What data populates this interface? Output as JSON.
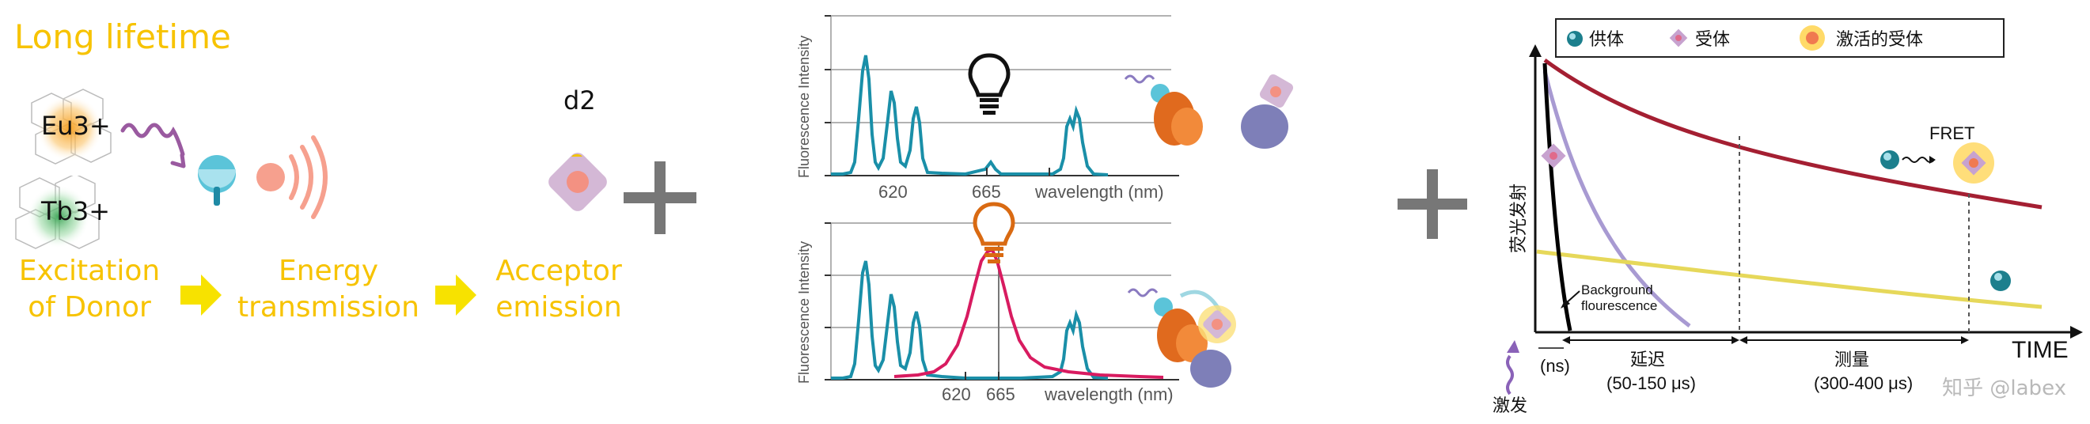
{
  "left_panel": {
    "title": "Long lifetime",
    "donor1": "Eu3+",
    "donor2": "Tb3+",
    "steps": [
      "Excitation of Donor",
      "Energy transmission",
      "Acceptor emission"
    ],
    "step_lines": [
      [
        "Excitation",
        "of Donor"
      ],
      [
        "Energy",
        "transmission"
      ],
      [
        "Acceptor",
        "emission"
      ]
    ],
    "acceptor_label": "d2",
    "colors": {
      "step_text": "#f7c300",
      "arrow": "#f7e200"
    }
  },
  "plus_signs": [
    "+",
    "+"
  ],
  "spectra": [
    {
      "ylabel": "Fluorescence Intensity",
      "xticks": [
        "620",
        "665"
      ],
      "xlabel": "wavelength (nm)",
      "icon": "lightbulb-off-icon",
      "series_color": "#1a8fa8"
    },
    {
      "ylabel": "Fluorescence Intensity",
      "xticks": [
        "620",
        "665"
      ],
      "xlabel": "wavelength (nm)",
      "icon": "lightbulb-on-icon",
      "series_color": "#1a8fa8",
      "emission_color": "#d81b60"
    }
  ],
  "time_chart": {
    "legend": [
      "供体",
      "受体",
      "激活的受体"
    ],
    "ylabel": "荧光发射",
    "xlabel": "TIME",
    "fret_label": "FRET",
    "background_label": [
      "Background",
      "flourescence"
    ],
    "intervals": [
      {
        "label": "延迟",
        "range": "(50-150 μs)"
      },
      {
        "label": "测量",
        "range": "(300-400 μs)"
      }
    ],
    "ns_label": "(ns)",
    "excitation_label": "激发",
    "colors": {
      "red_curve": "#a41f32",
      "purple_curve": "#a89ad2",
      "yellow_curve": "#e6d85a",
      "black_curve": "#000000"
    }
  },
  "watermark": "知乎 @labex"
}
